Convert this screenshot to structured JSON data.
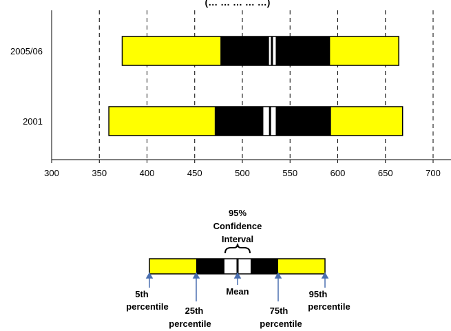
{
  "chart_data": {
    "type": "percentile-bar",
    "title": "(… … … … …)",
    "xlim": [
      300,
      700
    ],
    "xticks": [
      300,
      350,
      400,
      450,
      500,
      550,
      600,
      650,
      700
    ],
    "grid": "vertical dashed",
    "categories": [
      "2005/06",
      "2001"
    ],
    "series": [
      {
        "label": "2005/06",
        "p5": 374,
        "p25": 477,
        "ci_low": 528,
        "mean": 531,
        "ci_high": 535,
        "p75": 592,
        "p95": 664
      },
      {
        "label": "2001",
        "p5": 360,
        "p25": 471,
        "ci_low": 522,
        "mean": 529,
        "ci_high": 535,
        "p75": 593,
        "p95": 668
      }
    ],
    "colors": {
      "tail": "#ffff00",
      "middle": "#000000",
      "ci": "#ffffff"
    }
  },
  "legend": {
    "heading_line1": "95%",
    "heading_line2": "Confidence",
    "heading_line3": "Interval",
    "p5_line1": "5th",
    "p5_line2": "percentile",
    "p25_line1": "25th",
    "p25_line2": "percentile",
    "mean": "Mean",
    "p75_line1": "75th",
    "p75_line2": "percentile",
    "p95_line1": "95th",
    "p95_line2": "percentile"
  }
}
